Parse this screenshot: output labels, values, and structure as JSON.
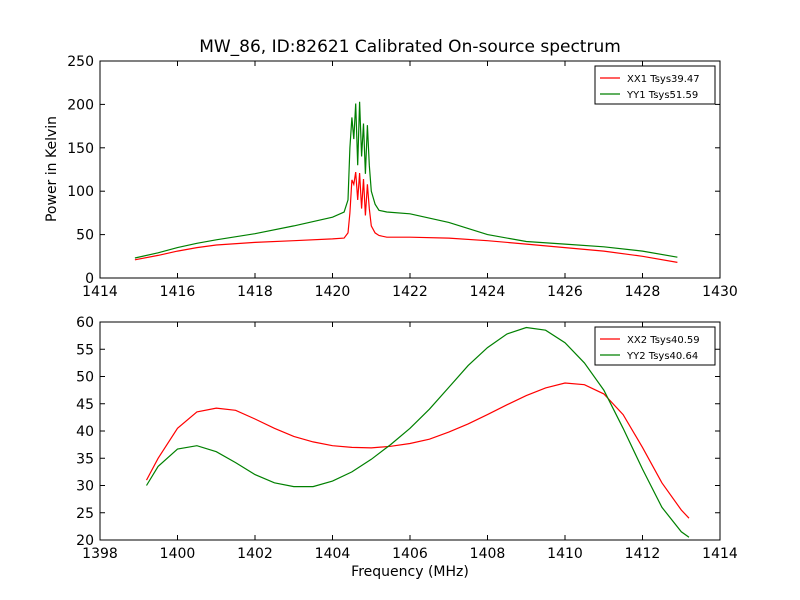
{
  "chart_data": [
    {
      "type": "line",
      "title": "MW_86, ID:82621 Calibrated On-source spectrum",
      "xlabel": "",
      "ylabel": "Power in Kelvin",
      "xlim": [
        1414,
        1430
      ],
      "ylim": [
        0,
        250
      ],
      "xticks": [
        1414,
        1416,
        1418,
        1420,
        1422,
        1424,
        1426,
        1428,
        1430
      ],
      "yticks": [
        0,
        50,
        100,
        150,
        200,
        250
      ],
      "legend_position": "top-right",
      "series": [
        {
          "name": "XX1 Tsys39.47",
          "color": "#ff0000",
          "x": [
            1414.9,
            1415.5,
            1416.0,
            1416.5,
            1417.0,
            1418.0,
            1419.0,
            1420.0,
            1420.3,
            1420.4,
            1420.45,
            1420.5,
            1420.55,
            1420.6,
            1420.65,
            1420.7,
            1420.75,
            1420.8,
            1420.85,
            1420.9,
            1420.95,
            1421.0,
            1421.1,
            1421.2,
            1421.4,
            1422.0,
            1423.0,
            1424.0,
            1425.0,
            1426.0,
            1427.0,
            1428.0,
            1428.9
          ],
          "y": [
            21,
            26,
            31,
            35,
            38,
            41,
            43,
            45,
            46,
            52,
            75,
            113,
            108,
            122,
            90,
            121,
            80,
            114,
            72,
            108,
            80,
            60,
            52,
            49,
            47,
            47,
            46,
            43,
            39,
            35,
            31,
            25,
            18
          ]
        },
        {
          "name": "YY1 Tsys51.59",
          "color": "#008000",
          "x": [
            1414.9,
            1415.5,
            1416.0,
            1416.5,
            1417.0,
            1418.0,
            1419.0,
            1420.0,
            1420.3,
            1420.4,
            1420.45,
            1420.5,
            1420.55,
            1420.6,
            1420.65,
            1420.7,
            1420.75,
            1420.8,
            1420.85,
            1420.9,
            1420.95,
            1421.0,
            1421.1,
            1421.2,
            1421.4,
            1422.0,
            1423.0,
            1424.0,
            1425.0,
            1426.0,
            1427.0,
            1428.0,
            1428.9
          ],
          "y": [
            23,
            29,
            35,
            40,
            44,
            51,
            60,
            70,
            76,
            90,
            150,
            185,
            160,
            201,
            130,
            203,
            140,
            178,
            120,
            176,
            130,
            100,
            85,
            78,
            76,
            74,
            64,
            50,
            42,
            39,
            36,
            31,
            24
          ]
        }
      ]
    },
    {
      "type": "line",
      "title": "",
      "xlabel": "Frequency (MHz)",
      "ylabel": "",
      "xlim": [
        1398,
        1414
      ],
      "ylim": [
        20,
        60
      ],
      "xticks": [
        1398,
        1400,
        1402,
        1404,
        1406,
        1408,
        1410,
        1412,
        1414
      ],
      "yticks": [
        20,
        25,
        30,
        35,
        40,
        45,
        50,
        55,
        60
      ],
      "legend_position": "top-right",
      "series": [
        {
          "name": "XX2 Tsys40.59",
          "color": "#ff0000",
          "x": [
            1399.2,
            1399.5,
            1400.0,
            1400.5,
            1401.0,
            1401.5,
            1402.0,
            1402.5,
            1403.0,
            1403.5,
            1404.0,
            1404.5,
            1405.0,
            1405.5,
            1406.0,
            1406.5,
            1407.0,
            1407.5,
            1408.0,
            1408.5,
            1409.0,
            1409.5,
            1410.0,
            1410.5,
            1411.0,
            1411.5,
            1412.0,
            1412.5,
            1413.0,
            1413.2
          ],
          "y": [
            31,
            35,
            40.5,
            43.5,
            44.2,
            43.8,
            42.2,
            40.5,
            39,
            38,
            37.3,
            37,
            36.9,
            37.2,
            37.7,
            38.5,
            39.8,
            41.3,
            43,
            44.8,
            46.5,
            47.9,
            48.8,
            48.5,
            46.8,
            43,
            37,
            30.5,
            25.5,
            24
          ]
        },
        {
          "name": "YY2 Tsys40.64",
          "color": "#008000",
          "x": [
            1399.2,
            1399.5,
            1400.0,
            1400.5,
            1401.0,
            1401.5,
            1402.0,
            1402.5,
            1403.0,
            1403.5,
            1404.0,
            1404.5,
            1405.0,
            1405.5,
            1406.0,
            1406.5,
            1407.0,
            1407.5,
            1408.0,
            1408.5,
            1409.0,
            1409.5,
            1410.0,
            1410.5,
            1411.0,
            1411.5,
            1412.0,
            1412.5,
            1413.0,
            1413.2
          ],
          "y": [
            30,
            33.5,
            36.7,
            37.3,
            36.2,
            34.2,
            32,
            30.5,
            29.8,
            29.8,
            30.8,
            32.5,
            34.8,
            37.5,
            40.5,
            44,
            48,
            52,
            55.3,
            57.8,
            59,
            58.5,
            56.2,
            52.5,
            47.5,
            40.5,
            33,
            26,
            21.5,
            20.5
          ]
        }
      ]
    }
  ]
}
